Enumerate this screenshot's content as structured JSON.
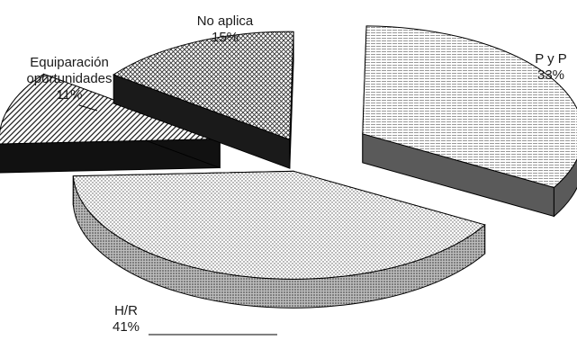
{
  "chart_data": {
    "type": "pie",
    "variant": "3d-exploded",
    "categories": [
      "P y P",
      "H/R",
      "Equiparación oportunidades",
      "No aplica"
    ],
    "values": [
      33,
      41,
      11,
      15
    ],
    "value_labels": [
      "33%",
      "41%",
      "11%",
      "15%"
    ],
    "label_lines": [
      [
        "P y P"
      ],
      [
        "H/R"
      ],
      [
        "Equiparación",
        "oportunidades"
      ],
      [
        "No aplica"
      ]
    ],
    "title": "",
    "legend": "none",
    "colors": [
      "#5a5a5a",
      "#d8d8d8",
      "#111111",
      "#1a1a1a"
    ]
  }
}
